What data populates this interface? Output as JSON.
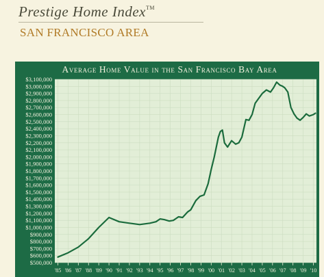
{
  "header": {
    "brand": "Prestige Home Index",
    "trademark": "TM",
    "subtitle": "SAN FRANCISCO AREA"
  },
  "colors": {
    "background": "#f7f3e0",
    "panel": "#1d6b45",
    "plot_area": "#e2eed7",
    "line": "#1a6b3c",
    "brand_text": "#4a4a3a",
    "subtitle_text": "#b07a26"
  },
  "chart_data": {
    "type": "line",
    "title": "Average Home Value in the San Francisco Bay Area",
    "xlabel": "",
    "ylabel": "",
    "grid": true,
    "legend": "none",
    "ylim": [
      500000,
      3100000
    ],
    "xlim": [
      1984.7,
      2010.3
    ],
    "y_ticks": [
      500000,
      600000,
      700000,
      800000,
      900000,
      1000000,
      1100000,
      1200000,
      1300000,
      1400000,
      1500000,
      1600000,
      1700000,
      1800000,
      1900000,
      2000000,
      2100000,
      2200000,
      2300000,
      2400000,
      2500000,
      2600000,
      2700000,
      2800000,
      2900000,
      3000000,
      3100000
    ],
    "y_tick_labels": [
      "$500,000",
      "$600,000",
      "$700,000",
      "$800,000",
      "$900,000",
      "$1,000,000",
      "$1,100,000",
      "$1,200,000",
      "$1,300,000",
      "$1,400,000",
      "$1,500,000",
      "$1,600,000",
      "$1,700,000",
      "$1,800,000",
      "$1,900,000",
      "$2,000,000",
      "$2,100,000",
      "$2,200,000",
      "$2,300,000",
      "$2,400,000",
      "$2,500,000",
      "$2,600,000",
      "$2,700,000",
      "$2,800,000",
      "$2,900,000",
      "$3,000,000",
      "$3,100,000"
    ],
    "x_ticks": [
      1985,
      1986,
      1987,
      1988,
      1989,
      1990,
      1991,
      1992,
      1993,
      1994,
      1995,
      1996,
      1997,
      1998,
      1999,
      2000,
      2001,
      2002,
      2003,
      2004,
      2005,
      2006,
      2007,
      2008,
      2009,
      2010
    ],
    "x_tick_labels": [
      "'85",
      "'86",
      "'87",
      "'88",
      "'89",
      "'90",
      "'91",
      "'92",
      "'93",
      "'94",
      "'95",
      "'96",
      "'97",
      "'98",
      "'99",
      "'00",
      "'01",
      "'02",
      "'03",
      "'04",
      "'05",
      "'06",
      "'07",
      "'08",
      "'09",
      "'10"
    ],
    "series": [
      {
        "x": [
          1985.0,
          1986.0,
          1987.0,
          1988.0,
          1989.0,
          1990.0,
          1991.0,
          1992.0,
          1993.0,
          1994.0,
          1994.6,
          1995.0,
          1995.4,
          1995.9,
          1996.3,
          1996.8,
          1997.2,
          1997.7,
          1998.0,
          1998.5,
          1998.9,
          1999.3,
          1999.7,
          2000.0,
          2000.3,
          2000.7,
          2000.9,
          2001.1,
          2001.3,
          2001.6,
          2002.0,
          2002.4,
          2002.7,
          2003.0,
          2003.4,
          2003.7,
          2004.0,
          2004.3,
          2004.6,
          2005.0,
          2005.4,
          2005.8,
          2006.1,
          2006.4,
          2006.7,
          2007.0,
          2007.2,
          2007.5,
          2007.8,
          2008.1,
          2008.4,
          2008.7,
          2009.0,
          2009.3,
          2009.6,
          2010.0,
          2010.2
        ],
        "values": [
          580000,
          640000,
          720000,
          840000,
          1000000,
          1140000,
          1080000,
          1060000,
          1040000,
          1060000,
          1080000,
          1120000,
          1110000,
          1090000,
          1100000,
          1150000,
          1140000,
          1220000,
          1250000,
          1380000,
          1440000,
          1460000,
          1620000,
          1820000,
          2000000,
          2280000,
          2360000,
          2380000,
          2200000,
          2140000,
          2230000,
          2180000,
          2200000,
          2280000,
          2530000,
          2520000,
          2600000,
          2760000,
          2820000,
          2900000,
          2950000,
          2920000,
          2980000,
          3060000,
          3020000,
          3000000,
          2980000,
          2920000,
          2700000,
          2610000,
          2550000,
          2520000,
          2560000,
          2610000,
          2580000,
          2600000,
          2620000
        ]
      }
    ]
  }
}
